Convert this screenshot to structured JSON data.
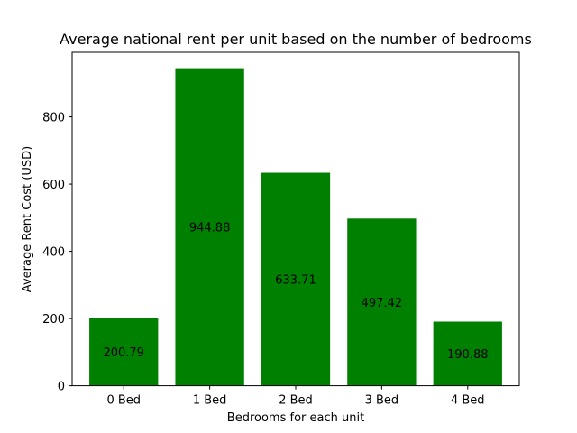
{
  "chart_data": {
    "type": "bar",
    "title": "Average national rent per unit based on the number of bedrooms",
    "xlabel": "Bedrooms for each unit",
    "ylabel": "Average Rent Cost (USD)",
    "categories": [
      "0 Bed",
      "1 Bed",
      "2 Bed",
      "3 Bed",
      "4 Bed"
    ],
    "values": [
      200.79,
      944.88,
      633.71,
      497.42,
      190.88
    ],
    "data_labels": [
      "200.79",
      "944.88",
      "633.71",
      "497.42",
      "190.88"
    ],
    "ylim": [
      0,
      992.124
    ],
    "yticks": [
      0,
      200,
      400,
      600,
      800
    ],
    "ytick_labels": [
      "0",
      "200",
      "400",
      "600",
      "800"
    ],
    "bar_color": "#008000",
    "grid": false,
    "legend": "none"
  }
}
